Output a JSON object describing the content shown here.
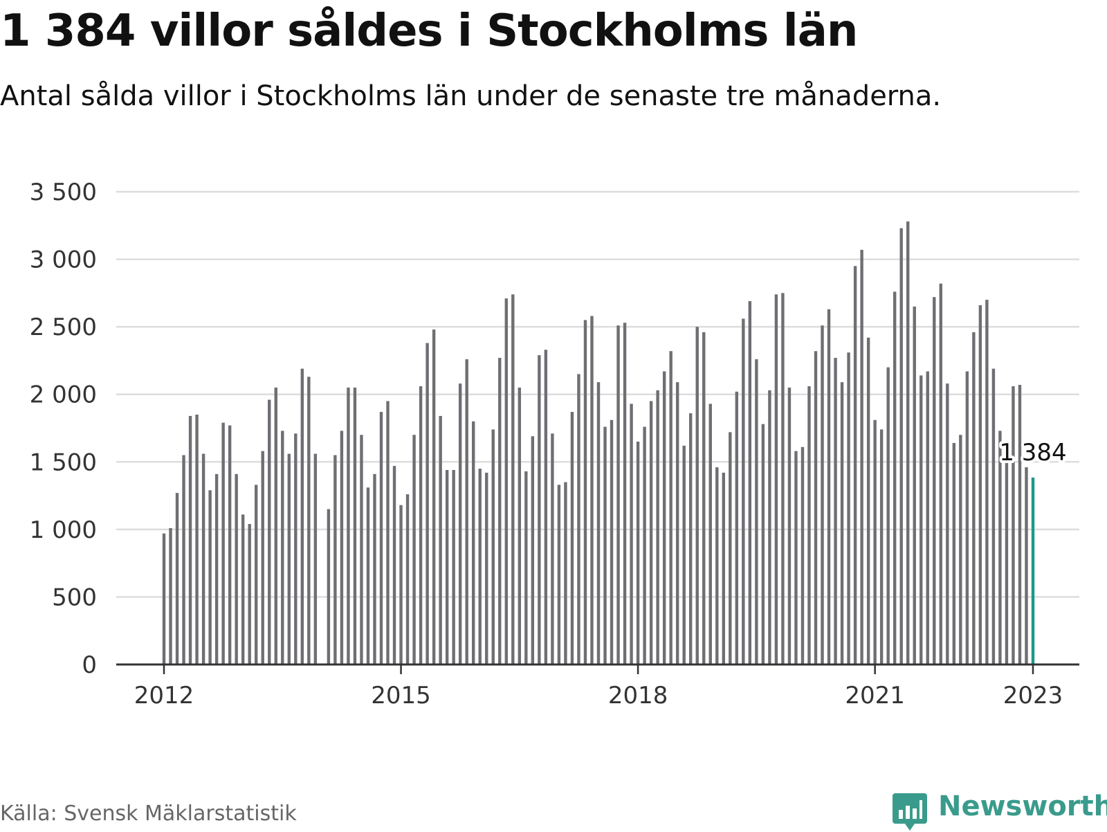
{
  "header": {
    "title": "1 384 villor såldes i Stockholms län",
    "subtitle": "Antal sålda villor i Stockholms län under de senaste tre månaderna."
  },
  "footer": {
    "source": "Källa: Svensk Mäklarstatistik",
    "brand": "Newsworthy",
    "brand_icon": "bar-chart-speech-bubble-icon"
  },
  "colors": {
    "bar": "#6e6e73",
    "highlight": "#1a9a8a",
    "grid": "#dddddd",
    "axis": "#333333",
    "brand": "#3a9b8c"
  },
  "chart_data": {
    "type": "bar",
    "x_unit": "month",
    "x_start": "2012-01",
    "x_end": "2023-01",
    "x_ticks": [
      "2012",
      "2015",
      "2018",
      "2021",
      "2023"
    ],
    "y_ticks": [
      "0",
      "500",
      "1 000",
      "1 500",
      "2 000",
      "2 500",
      "3 000",
      "3 500"
    ],
    "ylim": [
      0,
      3500
    ],
    "grid": true,
    "highlight_label": "1 384",
    "values": [
      970,
      1010,
      1270,
      1550,
      1840,
      1850,
      1560,
      1290,
      1410,
      1790,
      1770,
      1410,
      1110,
      1040,
      1330,
      1580,
      1960,
      2050,
      1730,
      1560,
      1710,
      2190,
      2130,
      1560,
      null,
      1150,
      1550,
      1730,
      2050,
      2050,
      1700,
      1310,
      1410,
      1870,
      1950,
      1470,
      1180,
      1260,
      1700,
      2060,
      2380,
      2480,
      1840,
      1440,
      1440,
      2080,
      2260,
      1800,
      1450,
      1420,
      1740,
      2270,
      2710,
      2740,
      2050,
      1430,
      1690,
      2290,
      2330,
      1710,
      1330,
      1350,
      1870,
      2150,
      2550,
      2580,
      2090,
      1760,
      1810,
      2510,
      2530,
      1930,
      1650,
      1760,
      1950,
      2030,
      2170,
      2320,
      2090,
      1620,
      1860,
      2500,
      2460,
      1930,
      1460,
      1420,
      1720,
      2020,
      2560,
      2690,
      2260,
      1780,
      2030,
      2740,
      2750,
      2050,
      1580,
      1610,
      2060,
      2320,
      2510,
      2630,
      2270,
      2090,
      2310,
      2950,
      3070,
      2420,
      1810,
      1740,
      2200,
      2760,
      3230,
      3280,
      2650,
      2140,
      2170,
      2720,
      2820,
      2080,
      1640,
      1700,
      2170,
      2460,
      2660,
      2700,
      2190,
      1730,
      1570,
      2060,
      2070,
      1460,
      1384
    ]
  }
}
